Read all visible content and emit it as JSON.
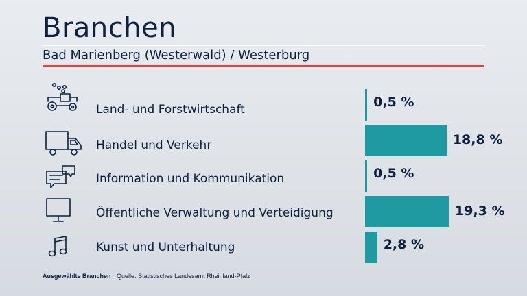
{
  "header": {
    "title": "Branchen",
    "subtitle": "Bad Marienberg (Westerwald) / Westerburg"
  },
  "footer": {
    "note": "Ausgewählte Branchen",
    "source": "Quelle: Statistisches Landesamt Rheinland-Pfalz"
  },
  "colors": {
    "bar": "#1f9aa1",
    "accent_rule": "#e8413a",
    "text": "#0d2240"
  },
  "chart_data": {
    "type": "bar",
    "orientation": "horizontal",
    "title": "Branchen",
    "subtitle": "Bad Marienberg (Westerwald) / Westerburg",
    "categories": [
      "Land- und Forstwirtschaft",
      "Handel und Verkehr",
      "Information und Kommunikation",
      "Öffentliche Verwaltung und Verteidigung",
      "Kunst und Unterhaltung"
    ],
    "icons": [
      "tractor-icon",
      "truck-icon",
      "chat-icon",
      "monitor-icon",
      "music-note-icon"
    ],
    "values": [
      0.5,
      18.8,
      0.5,
      19.3,
      2.8
    ],
    "value_labels": [
      "0,5 %",
      "18,8 %",
      "0,5 %",
      "19,3 %",
      "2,8 %"
    ],
    "unit": "%",
    "grid": false,
    "legend": "none"
  }
}
